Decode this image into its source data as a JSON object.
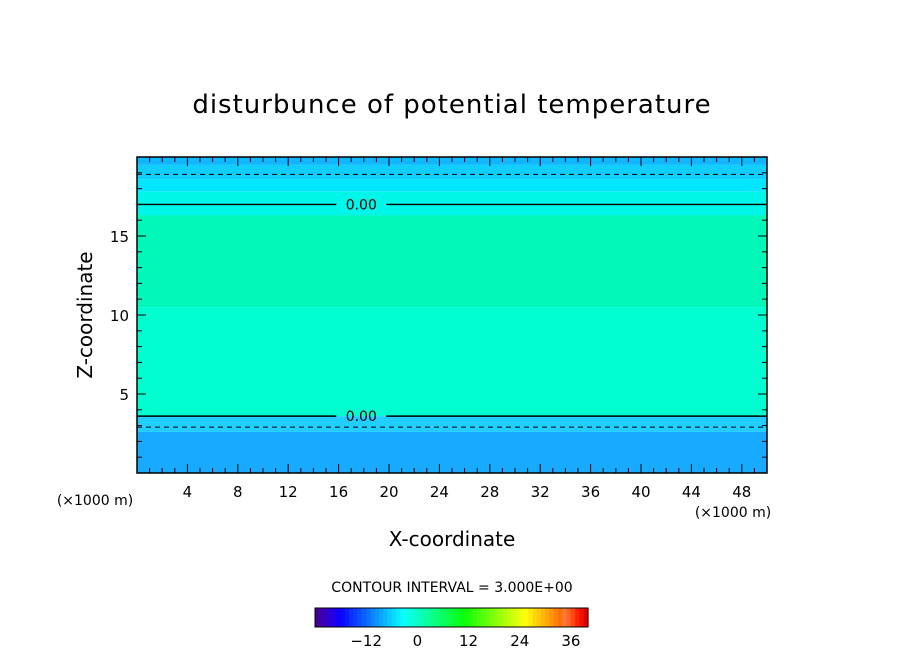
{
  "chart_data": {
    "type": "heatmap",
    "title": "disturbunce of potential temperature",
    "xlabel": "X-coordinate",
    "ylabel": "Z-coordinate",
    "x_unit_label": "(×1000 m)",
    "z_unit_label": "(×1000 m)",
    "xlim": [
      0,
      50
    ],
    "ylim": [
      0,
      20
    ],
    "x_ticks": [
      4,
      8,
      12,
      16,
      20,
      24,
      28,
      32,
      36,
      40,
      44,
      48
    ],
    "y_ticks": [
      5,
      10,
      15
    ],
    "contour_interval_text": "CONTOUR INTERVAL = 3.000E+00",
    "contour_lines": [
      {
        "z": 17.0,
        "label": "0.00",
        "style": "solid",
        "label_x": 17.8
      },
      {
        "z": 3.6,
        "label": "0.00",
        "style": "solid",
        "label_x": 17.8
      },
      {
        "z": 18.9,
        "label": "",
        "style": "dashed"
      },
      {
        "z": 2.9,
        "label": "",
        "style": "dashed"
      }
    ],
    "bands": [
      {
        "z0": 19.5,
        "z1": 20.0,
        "color": "#10b6ff"
      },
      {
        "z0": 18.6,
        "z1": 19.5,
        "color": "#10cfff"
      },
      {
        "z0": 17.8,
        "z1": 18.6,
        "color": "#00e6ff"
      },
      {
        "z0": 16.3,
        "z1": 17.8,
        "color": "#00f6e8"
      },
      {
        "z0": 10.5,
        "z1": 16.3,
        "color": "#00f8b8"
      },
      {
        "z0": 3.6,
        "z1": 10.5,
        "color": "#00ffd0"
      },
      {
        "z0": 2.6,
        "z1": 3.6,
        "color": "#20cfff"
      },
      {
        "z0": 0.0,
        "z1": 2.6,
        "color": "#18aaff"
      }
    ],
    "colorbar": {
      "ticks": [
        -12,
        0,
        12,
        24,
        36
      ],
      "range": [
        -24,
        40
      ]
    }
  }
}
